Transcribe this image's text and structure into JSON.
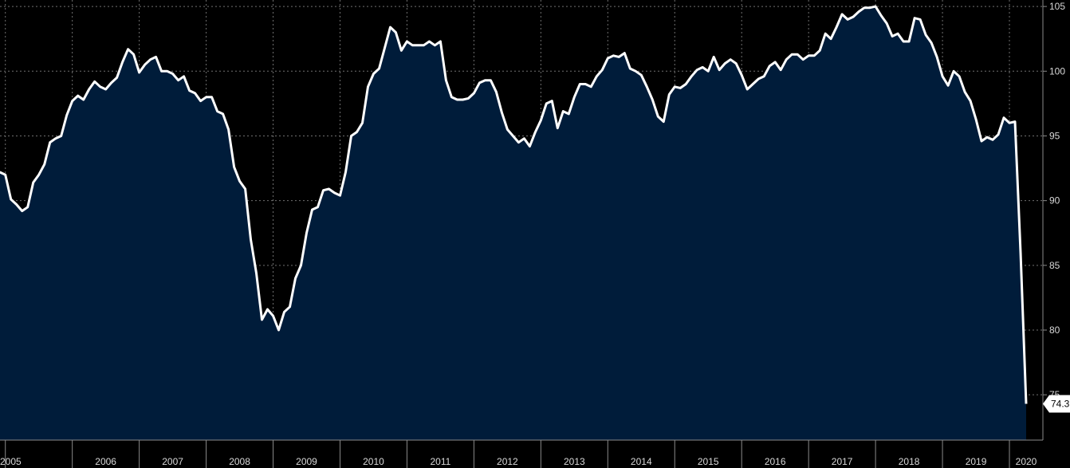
{
  "chart_data": {
    "type": "area",
    "title": "",
    "xlabel": "",
    "ylabel": "",
    "ylim": [
      71.5,
      105.5
    ],
    "xlim": [
      2004.92,
      2020.5
    ],
    "y_ticks": [
      75,
      80,
      85,
      90,
      95,
      100,
      105
    ],
    "x_year_labels": [
      "2005",
      "2006",
      "2007",
      "2008",
      "2009",
      "2010",
      "2011",
      "2012",
      "2013",
      "2014",
      "2015",
      "2016",
      "2017",
      "2018",
      "2019",
      "2020"
    ],
    "grid": true,
    "last_value_label": "74.3",
    "colors": {
      "background": "#000000",
      "fill": "#001c3a",
      "line": "#ffffff",
      "grid": "#6f6f6f",
      "text": "#d8d8d8",
      "last_label_bg": "#ffffff"
    },
    "series": [
      {
        "x": [
          "2004-12",
          "2005-01",
          "2005-02",
          "2005-03",
          "2005-04",
          "2005-05",
          "2005-06",
          "2005-07",
          "2005-08",
          "2005-09",
          "2005-10",
          "2005-11",
          "2005-12",
          "2006-01",
          "2006-02",
          "2006-03",
          "2006-04",
          "2006-05",
          "2006-06",
          "2006-07",
          "2006-08",
          "2006-09",
          "2006-10",
          "2006-11",
          "2006-12",
          "2007-01",
          "2007-02",
          "2007-03",
          "2007-04",
          "2007-05",
          "2007-06",
          "2007-07",
          "2007-08",
          "2007-09",
          "2007-10",
          "2007-11",
          "2007-12",
          "2008-01",
          "2008-02",
          "2008-03",
          "2008-04",
          "2008-05",
          "2008-06",
          "2008-07",
          "2008-08",
          "2008-09",
          "2008-10",
          "2008-11",
          "2008-12",
          "2009-01",
          "2009-02",
          "2009-03",
          "2009-04",
          "2009-05",
          "2009-06",
          "2009-07",
          "2009-08",
          "2009-09",
          "2009-10",
          "2009-11",
          "2009-12",
          "2010-01",
          "2010-02",
          "2010-03",
          "2010-04",
          "2010-05",
          "2010-06",
          "2010-07",
          "2010-08",
          "2010-09",
          "2010-10",
          "2010-11",
          "2010-12",
          "2011-01",
          "2011-02",
          "2011-03",
          "2011-04",
          "2011-05",
          "2011-06",
          "2011-07",
          "2011-08",
          "2011-09",
          "2011-10",
          "2011-11",
          "2011-12",
          "2012-01",
          "2012-02",
          "2012-03",
          "2012-04",
          "2012-05",
          "2012-06",
          "2012-07",
          "2012-08",
          "2012-09",
          "2012-10",
          "2012-11",
          "2012-12",
          "2013-01",
          "2013-02",
          "2013-03",
          "2013-04",
          "2013-05",
          "2013-06",
          "2013-07",
          "2013-08",
          "2013-09",
          "2013-10",
          "2013-11",
          "2013-12",
          "2014-01",
          "2014-02",
          "2014-03",
          "2014-04",
          "2014-05",
          "2014-06",
          "2014-07",
          "2014-08",
          "2014-09",
          "2014-10",
          "2014-11",
          "2014-12",
          "2015-01",
          "2015-02",
          "2015-03",
          "2015-04",
          "2015-05",
          "2015-06",
          "2015-07",
          "2015-08",
          "2015-09",
          "2015-10",
          "2015-11",
          "2015-12",
          "2016-01",
          "2016-02",
          "2016-03",
          "2016-04",
          "2016-05",
          "2016-06",
          "2016-07",
          "2016-08",
          "2016-09",
          "2016-10",
          "2016-11",
          "2016-12",
          "2017-01",
          "2017-02",
          "2017-03",
          "2017-04",
          "2017-05",
          "2017-06",
          "2017-07",
          "2017-08",
          "2017-09",
          "2017-10",
          "2017-11",
          "2017-12",
          "2018-01",
          "2018-02",
          "2018-03",
          "2018-04",
          "2018-05",
          "2018-06",
          "2018-07",
          "2018-08",
          "2018-09",
          "2018-10",
          "2018-11",
          "2018-12",
          "2019-01",
          "2019-02",
          "2019-03",
          "2019-04",
          "2019-05",
          "2019-06",
          "2019-07",
          "2019-08",
          "2019-09",
          "2019-10",
          "2019-11",
          "2019-12",
          "2020-01",
          "2020-02",
          "2020-03",
          "2020-04"
        ],
        "values": [
          92.2,
          92.0,
          90.1,
          89.7,
          89.2,
          89.5,
          91.4,
          92.0,
          92.8,
          94.5,
          94.8,
          95.0,
          96.6,
          97.7,
          98.1,
          97.8,
          98.6,
          99.2,
          98.8,
          98.6,
          99.1,
          99.5,
          100.7,
          101.7,
          101.3,
          99.9,
          100.5,
          100.9,
          101.1,
          100.0,
          100.0,
          99.8,
          99.3,
          99.6,
          98.5,
          98.3,
          97.7,
          98.0,
          98.0,
          96.9,
          96.7,
          95.5,
          92.6,
          91.5,
          90.9,
          87.0,
          84.4,
          80.8,
          81.6,
          81.1,
          80.0,
          81.4,
          81.8,
          84.0,
          85.0,
          87.5,
          89.3,
          89.5,
          90.8,
          90.9,
          90.6,
          90.4,
          92.2,
          95.0,
          95.3,
          96.0,
          98.8,
          99.8,
          100.2,
          101.8,
          103.4,
          103.0,
          101.6,
          102.3,
          102.0,
          102.0,
          102.0,
          102.3,
          102.0,
          102.3,
          99.3,
          98.0,
          97.8,
          97.8,
          97.9,
          98.3,
          99.1,
          99.3,
          99.3,
          98.4,
          96.8,
          95.5,
          95.0,
          94.5,
          94.8,
          94.2,
          95.3,
          96.2,
          97.5,
          97.7,
          95.6,
          96.9,
          96.7,
          98.0,
          99.0,
          99.0,
          98.8,
          99.6,
          100.1,
          101.0,
          101.2,
          101.1,
          101.4,
          100.2,
          100.0,
          99.7,
          98.8,
          97.8,
          96.5,
          96.1,
          98.2,
          98.8,
          98.7,
          99.0,
          99.6,
          100.1,
          100.3,
          100.0,
          101.1,
          100.1,
          100.6,
          100.9,
          100.6,
          99.7,
          98.6,
          99.0,
          99.4,
          99.6,
          100.4,
          100.7,
          100.1,
          100.9,
          101.3,
          101.3,
          100.9,
          101.2,
          101.2,
          101.6,
          102.9,
          102.5,
          103.4,
          104.4,
          104.0,
          104.2,
          104.6,
          104.9,
          104.9,
          105.0,
          104.3,
          103.7,
          102.7,
          102.9,
          102.3,
          102.3,
          104.1,
          104.0,
          102.8,
          102.2,
          101.1,
          99.6,
          98.9,
          100.0,
          99.6,
          98.4,
          97.7,
          96.3,
          94.6,
          94.9,
          94.7,
          95.1,
          96.4,
          96.0,
          96.1,
          86.0,
          74.3
        ]
      }
    ]
  }
}
